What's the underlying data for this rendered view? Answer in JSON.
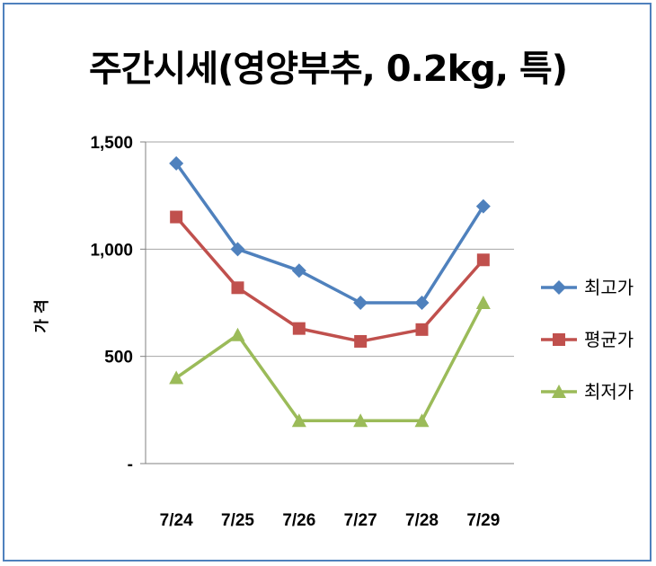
{
  "chart_data": {
    "type": "line",
    "title": "주간시세(영양부추, 0.2kg, 특)",
    "ylabel": "가 격",
    "xlabel": "",
    "categories": [
      "7/24",
      "7/25",
      "7/26",
      "7/27",
      "7/28",
      "7/29"
    ],
    "ylim": [
      0,
      1500
    ],
    "yticks": [
      {
        "value": 1500,
        "label": "1,500"
      },
      {
        "value": 1000,
        "label": "1,000"
      },
      {
        "value": 500,
        "label": "500"
      },
      {
        "value": 0,
        "label": "-"
      }
    ],
    "grid": true,
    "legend_position": "right",
    "series": [
      {
        "name": "최고가",
        "color": "#4f81bd",
        "marker": "diamond",
        "values": [
          1400,
          1000,
          900,
          750,
          750,
          1200
        ]
      },
      {
        "name": "평균가",
        "color": "#c0504d",
        "marker": "square",
        "values": [
          1150,
          820,
          630,
          570,
          625,
          950
        ]
      },
      {
        "name": "최저가",
        "color": "#9bbb59",
        "marker": "triangle",
        "values": [
          400,
          600,
          200,
          200,
          200,
          750
        ]
      }
    ]
  }
}
